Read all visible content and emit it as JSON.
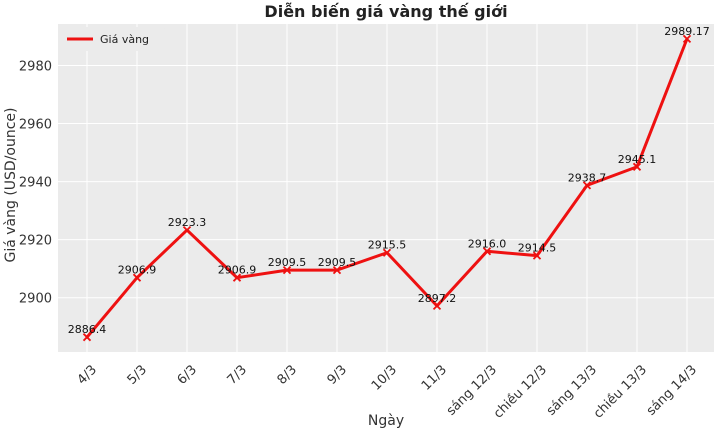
{
  "chart_data": {
    "type": "line",
    "title": "Diễn biến giá vàng thế giới",
    "xlabel": "Ngày",
    "ylabel": "Giá vàng (USD/ounce)",
    "categories": [
      "4/3",
      "5/3",
      "6/3",
      "7/3",
      "8/3",
      "9/3",
      "10/3",
      "11/3",
      "sáng 12/3",
      "chiều 12/3",
      "sáng 13/3",
      "chiều 13/3",
      "sáng 14/3"
    ],
    "series": [
      {
        "name": "Giá vàng",
        "color": "#ee1111",
        "values": [
          2886.4,
          2906.9,
          2923.3,
          2906.9,
          2909.5,
          2909.5,
          2915.5,
          2897.2,
          2916.0,
          2914.5,
          2938.7,
          2945.1,
          2989.17
        ],
        "labels": [
          "2886.4",
          "2906.9",
          "2923.3",
          "2906.9",
          "2909.5",
          "2909.5",
          "2915.5",
          "2897.2",
          "2916.0",
          "2914.5",
          "2938.7",
          "2945.1",
          "2989.17"
        ]
      }
    ],
    "yticks": [
      2900,
      2920,
      2940,
      2960,
      2980
    ],
    "ylim": [
      2881.3,
      2994.3
    ],
    "grid": true,
    "legend_position": "top-left",
    "background": "#ebebeb"
  }
}
